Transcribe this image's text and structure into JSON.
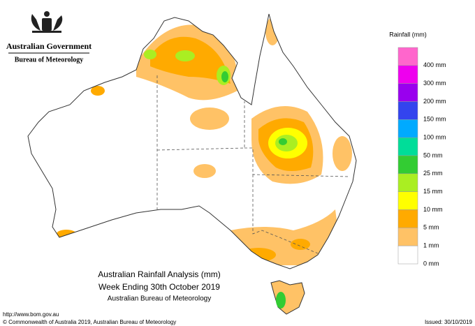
{
  "header": {
    "government": "Australian Government",
    "bureau": "Bureau of Meteorology"
  },
  "legend": {
    "title": "Rainfall (mm)",
    "labels": [
      "400 mm",
      "300 mm",
      "200 mm",
      "150 mm",
      "100 mm",
      "50 mm",
      "25 mm",
      "15 mm",
      "10 mm",
      "5 mm",
      "1 mm",
      "0 mm"
    ],
    "colors": [
      "#ff66cc",
      "#ee00ee",
      "#9900ee",
      "#3344ee",
      "#00aaff",
      "#00dd99",
      "#33cc33",
      "#aaee22",
      "#ffff00",
      "#ffaa00",
      "#ffc266",
      "#ffffff"
    ]
  },
  "caption": {
    "title": "Australian Rainfall Analysis (mm)",
    "week": "Week Ending 30th October 2019",
    "agency": "Australian Bureau of Meteorology"
  },
  "footer": {
    "url": "http://www.bom.gov.au",
    "copyright": "© Commonwealth of Australia 2019, Australian Bureau of Meteorology",
    "issued": "Issued: 30/10/2019"
  }
}
